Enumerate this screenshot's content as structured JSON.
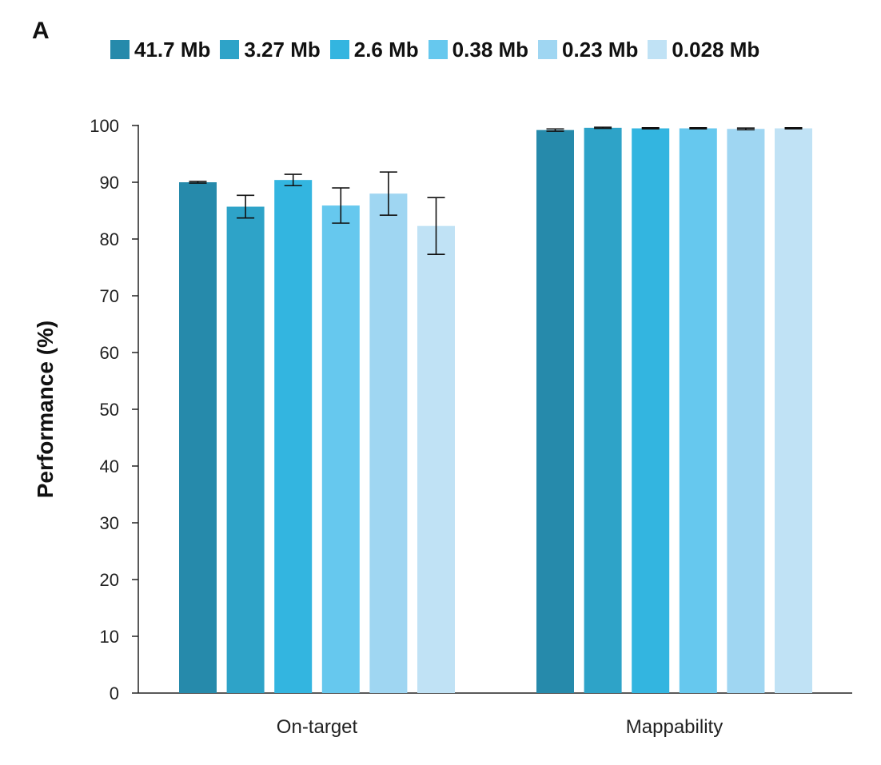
{
  "panel_label": "A",
  "colors": [
    "#268aab",
    "#2ea3c8",
    "#33b5e0",
    "#66c8ee",
    "#9fd6f2",
    "#c0e2f5"
  ],
  "chart_data": {
    "type": "bar",
    "title": "",
    "xlabel": "",
    "ylabel": "Performance (%)",
    "ylim": [
      0,
      100
    ],
    "yticks": [
      0,
      10,
      20,
      30,
      40,
      50,
      60,
      70,
      80,
      90,
      100
    ],
    "categories": [
      "On-target",
      "Mappability"
    ],
    "legend_position": "top",
    "series": [
      {
        "name": "41.7 Mb",
        "values": [
          90.0,
          99.2
        ],
        "errors": [
          0.15,
          0.2
        ]
      },
      {
        "name": "3.27 Mb",
        "values": [
          85.7,
          99.6
        ],
        "errors": [
          2.0,
          0.1
        ]
      },
      {
        "name": "2.6 Mb",
        "values": [
          90.4,
          99.5
        ],
        "errors": [
          1.0,
          0.1
        ]
      },
      {
        "name": "0.38 Mb",
        "values": [
          85.9,
          99.5
        ],
        "errors": [
          3.1,
          0.1
        ]
      },
      {
        "name": "0.23 Mb",
        "values": [
          88.0,
          99.4
        ],
        "errors": [
          3.8,
          0.15
        ]
      },
      {
        "name": "0.028 Mb",
        "values": [
          82.3,
          99.5
        ],
        "errors": [
          5.0,
          0.1
        ]
      }
    ]
  }
}
